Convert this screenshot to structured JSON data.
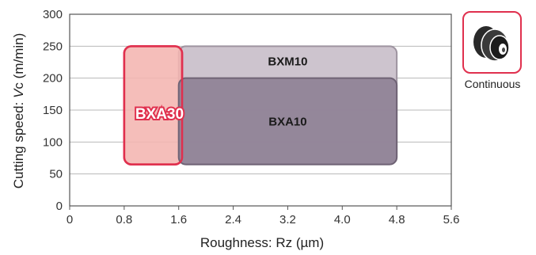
{
  "chart_data": {
    "type": "range-area",
    "xlabel": "Roughness: Rz (µm)",
    "ylabel_prefix": "Cutting speed: ",
    "ylabel_italic": "V",
    "ylabel_suffix": "c (m/min)",
    "xlim": [
      0,
      5.6
    ],
    "ylim": [
      0,
      300
    ],
    "x_ticks": [
      0,
      0.8,
      1.6,
      2.4,
      3.2,
      4.0,
      4.8,
      5.6
    ],
    "x_tick_labels": [
      "0",
      "0.8",
      "1.6",
      "2.4",
      "3.2",
      "4.0",
      "4.8",
      "5.6"
    ],
    "y_ticks": [
      0,
      50,
      100,
      150,
      200,
      250,
      300
    ],
    "y_tick_labels": [
      "0",
      "50",
      "100",
      "150",
      "200",
      "250",
      "300"
    ],
    "grid": true,
    "regions": [
      {
        "name": "BXM10",
        "x_range": [
          1.6,
          4.8
        ],
        "y_range": [
          65,
          250
        ],
        "fill": "#c9bfca",
        "stroke": "#9e94a0"
      },
      {
        "name": "BXA30",
        "x_range": [
          0.8,
          1.65
        ],
        "y_range": [
          65,
          250
        ],
        "fill": "#f4b5b1",
        "stroke": "#e0304e",
        "highlight": true
      },
      {
        "name": "BXA10",
        "x_range": [
          1.6,
          4.8
        ],
        "y_range": [
          65,
          200
        ],
        "fill": "#8f8196",
        "stroke": "#6f6375"
      }
    ]
  },
  "badge": {
    "label": "Continuous",
    "icon": "continuous-cutting-icon",
    "border_color": "#e0304e"
  }
}
